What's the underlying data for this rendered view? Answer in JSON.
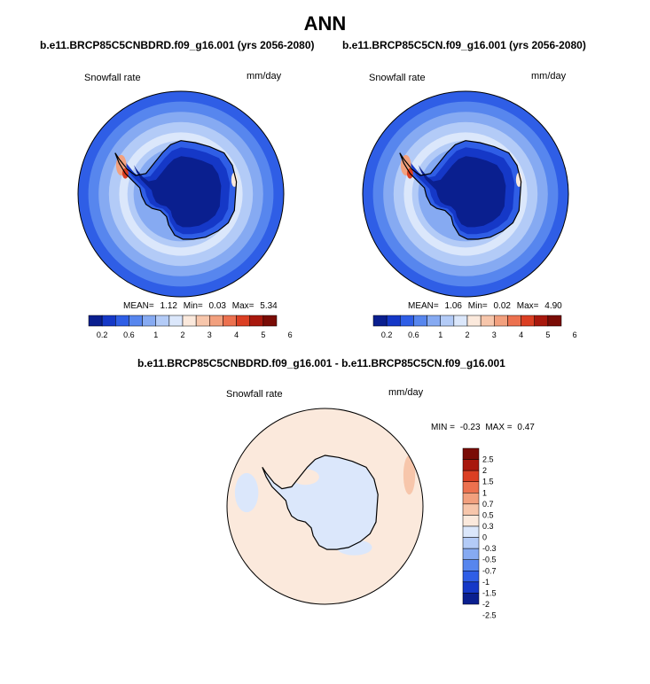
{
  "page": {
    "title": "ANN"
  },
  "colors": {
    "seq_scale": [
      "#0a1f8f",
      "#1538c7",
      "#2f5ee6",
      "#5786ee",
      "#86aaf2",
      "#b3cbf7",
      "#dbe7fb",
      "#fbe9dc",
      "#f7c6ab",
      "#f2a07e",
      "#ec714f",
      "#db3f23",
      "#a8180d",
      "#7a0c06"
    ],
    "diff_scale": [
      "#7a0c06",
      "#a8180d",
      "#db3f23",
      "#ec714f",
      "#f2a07e",
      "#f7c6ab",
      "#fbe9dc",
      "#dbe7fb",
      "#b3cbf7",
      "#86aaf2",
      "#5786ee",
      "#2f5ee6",
      "#1538c7",
      "#0a1f8f"
    ],
    "continent_outline": "#000000"
  },
  "chart_data": [
    {
      "type": "heatmap",
      "title": "b.e11.BRCP85C5CNBDRD.f09_g16.001 (yrs 2056-2080)",
      "variable_label": "Snowfall rate",
      "units_label": "mm/day",
      "stats": {
        "mean_label": "MEAN=",
        "mean": "1.12",
        "min_label": "Min=",
        "min": "0.03",
        "max_label": "Max=",
        "max": "5.34"
      },
      "colorbar": {
        "orientation": "horizontal",
        "tick_labels": [
          "0.2",
          "0.6",
          "1",
          "2",
          "3",
          "4",
          "5",
          "6"
        ]
      }
    },
    {
      "type": "heatmap",
      "title": "b.e11.BRCP85C5CN.f09_g16.001 (yrs 2056-2080)",
      "variable_label": "Snowfall rate",
      "units_label": "mm/day",
      "stats": {
        "mean_label": "MEAN=",
        "mean": "1.06",
        "min_label": "Min=",
        "min": "0.02",
        "max_label": "Max=",
        "max": "4.90"
      },
      "colorbar": {
        "orientation": "horizontal",
        "tick_labels": [
          "0.2",
          "0.6",
          "1",
          "2",
          "3",
          "4",
          "5",
          "6"
        ]
      }
    },
    {
      "type": "heatmap",
      "title": "b.e11.BRCP85C5CNBDRD.f09_g16.001 - b.e11.BRCP85C5CN.f09_g16.001",
      "variable_label": "Snowfall rate",
      "units_label": "mm/day",
      "stats": {
        "min_label": "MIN =",
        "min": "-0.23",
        "max_label": "MAX =",
        "max": "0.47"
      },
      "colorbar": {
        "orientation": "vertical",
        "tick_labels": [
          "2.5",
          "2",
          "1.5",
          "1",
          "0.7",
          "0.5",
          "0.3",
          "0",
          "-0.3",
          "-0.5",
          "-0.7",
          "-1",
          "-1.5",
          "-2",
          "-2.5"
        ]
      }
    }
  ]
}
